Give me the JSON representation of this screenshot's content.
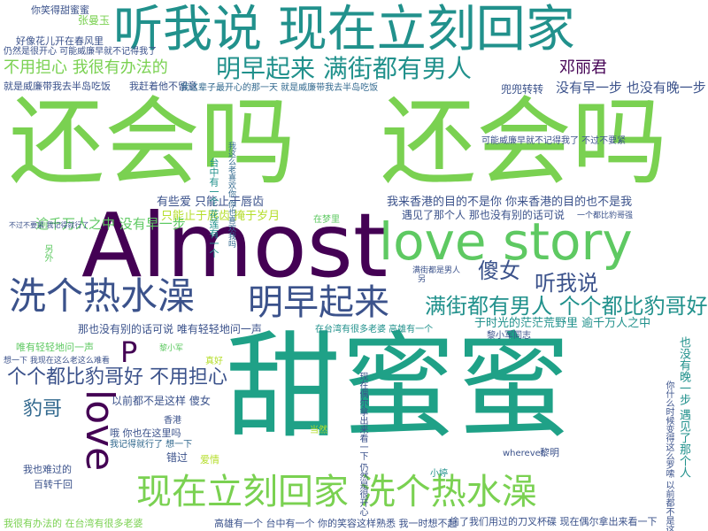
{
  "palette": {
    "dark_purple": "#440154",
    "indigo": "#3b528b",
    "slate": "#31688e",
    "teal": "#21918c",
    "jade": "#1fa187",
    "green": "#5ec962",
    "lime": "#7ad151",
    "yellow": "#b5de2b",
    "background": "#ffffff"
  },
  "words": [
    {
      "text": "甜蜜蜜"
    },
    {
      "text": "Almost"
    },
    {
      "text": "还会吗"
    },
    {
      "text": "还会吗"
    },
    {
      "text": "love story"
    },
    {
      "text": "听我说 现在立刻回家"
    },
    {
      "text": "明早起来 满街都有男人"
    },
    {
      "text": "洗个热水澡"
    },
    {
      "text": "明早起来"
    },
    {
      "text": "现在立刻回家 洗个热水澡"
    },
    {
      "text": "love"
    },
    {
      "text": "P"
    },
    {
      "text": "个个都比豹哥好 不用担心"
    },
    {
      "text": "满街都有男人 个个都比豹哥好"
    },
    {
      "text": "不用担心 我很有办法的"
    },
    {
      "text": "傻女"
    },
    {
      "text": "听我说"
    },
    {
      "text": "豹哥"
    },
    {
      "text": "邓丽君"
    },
    {
      "text": "有些爱 只能止于唇齿"
    },
    {
      "text": "只能止于唇齿 掩于岁月"
    },
    {
      "text": "我来香港的目的不是你 你来香港的目的也不是我"
    },
    {
      "text": "逾千万人之中 没有早一步"
    },
    {
      "text": "没有早一步 也没有晚一步"
    },
    {
      "text": "遇见了那个人 那也没有别的话可说"
    },
    {
      "text": "那也没有别的话可说 唯有轻轻地问一声"
    },
    {
      "text": "于时光的茫茫荒野里 逾千万人之中"
    },
    {
      "text": "也没有晚一步 遇见了那个人"
    },
    {
      "text": "兜兜转转"
    },
    {
      "text": "你笑得甜蜜蜜"
    },
    {
      "text": "张曼玉"
    },
    {
      "text": "好像花儿开在春风里"
    },
    {
      "text": "仍然是很开心 可能威廉早就不记得我了"
    },
    {
      "text": "就是威廉带我去半岛吃饭"
    },
    {
      "text": "我赶着他不留意"
    },
    {
      "text": "我这辈子最开心的那一天 就是威廉带我去半岛吃饭"
    },
    {
      "text": "可能威廉早就不记得我了 不过不要紧"
    },
    {
      "text": "台中有一个 花莲有一个"
    },
    {
      "text": "我这么老喜欢你 你也喜欢我吗"
    },
    {
      "text": "唯有轻轻地问一声"
    },
    {
      "text": "哦 你也在这里吗"
    },
    {
      "text": "我记得就行了 想一下"
    },
    {
      "text": "以前都不是这样 傻女"
    },
    {
      "text": "在台湾有很多老婆 高雄有一个"
    },
    {
      "text": "高雄有一个 台中有一个 你的笑容这样熟悉 我一时想不起"
    },
    {
      "text": "偷了我们用过的刀叉杯碟 现在偶尔拿出来看一下"
    },
    {
      "text": "我很有办法的 在台湾有很多老婆"
    },
    {
      "text": "我也难过的"
    },
    {
      "text": "百转千回"
    },
    {
      "text": "错过"
    },
    {
      "text": "爱情"
    },
    {
      "text": "黎明"
    },
    {
      "text": "小婷"
    },
    {
      "text": "wherever"
    },
    {
      "text": "黎小军同志"
    },
    {
      "text": "香港"
    },
    {
      "text": "你什么时候变得这么罗嗦 以前都不是这样"
    },
    {
      "text": "现在偶尔拿出来看一下 仍然是很开心"
    },
    {
      "text": "不过不要紧 我记得就行了"
    },
    {
      "text": "一个都比豹哥强"
    },
    {
      "text": "在梦里"
    },
    {
      "text": "满街都是男人"
    },
    {
      "text": "黎小军"
    },
    {
      "text": "想一下 我现在这么老这么难看"
    },
    {
      "text": "真好"
    },
    {
      "text": "当然"
    },
    {
      "text": "另外"
    },
    {
      "text": "另"
    }
  ]
}
